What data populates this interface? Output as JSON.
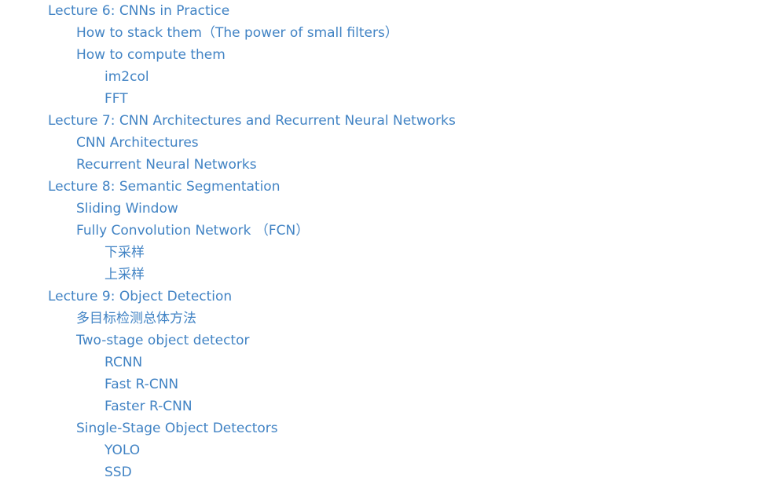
{
  "toc": {
    "items": [
      {
        "level": 1,
        "label": "Lecture 6: CNNs in Practice"
      },
      {
        "level": 2,
        "label": "How to stack them（The power of small filters）"
      },
      {
        "level": 2,
        "label": "How to compute them"
      },
      {
        "level": 3,
        "label": "im2col"
      },
      {
        "level": 3,
        "label": "FFT"
      },
      {
        "level": 1,
        "label": "Lecture 7: CNN Architectures and Recurrent Neural Networks"
      },
      {
        "level": 2,
        "label": "CNN Architectures"
      },
      {
        "level": 2,
        "label": "Recurrent Neural Networks"
      },
      {
        "level": 1,
        "label": "Lecture 8: Semantic Segmentation"
      },
      {
        "level": 2,
        "label": "Sliding Window"
      },
      {
        "level": 2,
        "label": "Fully Convolution Network （FCN）"
      },
      {
        "level": 3,
        "label": "下采样"
      },
      {
        "level": 3,
        "label": "上采样"
      },
      {
        "level": 1,
        "label": "Lecture 9: Object Detection"
      },
      {
        "level": 2,
        "label": "多目标检测总体方法"
      },
      {
        "level": 2,
        "label": "Two-stage object detector"
      },
      {
        "level": 3,
        "label": "RCNN"
      },
      {
        "level": 3,
        "label": "Fast R-CNN"
      },
      {
        "level": 3,
        "label": "Faster R-CNN"
      },
      {
        "level": 2,
        "label": "Single-Stage Object Detectors"
      },
      {
        "level": 3,
        "label": "YOLO"
      },
      {
        "level": 3,
        "label": "SSD"
      }
    ]
  },
  "colors": {
    "link": "#4183c4",
    "background": "#ffffff"
  }
}
